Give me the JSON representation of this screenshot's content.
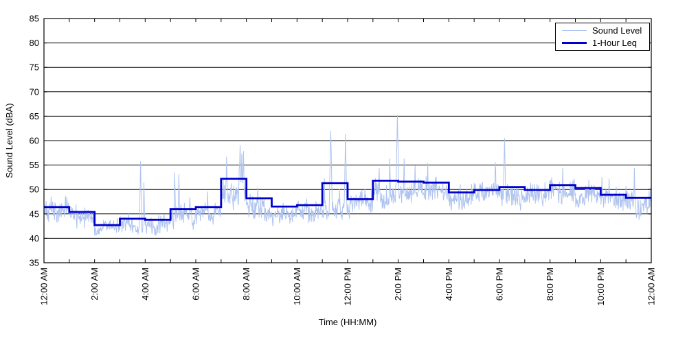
{
  "figure": {
    "background_color": "#ffffff",
    "axis_color": "#000000",
    "grid_color": "#000000",
    "text_color": "#000000"
  },
  "chart_data": {
    "type": "line",
    "title": "",
    "xlabel": "Time (HH:MM)",
    "ylabel": "Sound Level (dBA)",
    "ylim": [
      35,
      85
    ],
    "y_ticks": [
      35,
      40,
      45,
      50,
      55,
      60,
      65,
      70,
      75,
      80,
      85
    ],
    "x_range_hours": [
      0,
      24
    ],
    "x_minor_tick_every_hours": 1,
    "x_label_every_hours": 2,
    "x_tick_labels": [
      "12:00 AM",
      "2:00 AM",
      "4:00 AM",
      "6:00 AM",
      "8:00 AM",
      "10:00 AM",
      "12:00 PM",
      "2:00 PM",
      "4:00 PM",
      "6:00 PM",
      "8:00 PM",
      "10:00 PM",
      "12:00 AM"
    ],
    "x_tick_label_rotation_deg": -90,
    "grid": "horizontal-solid-black",
    "legend": {
      "position": "top-right",
      "items": [
        {
          "label": "Sound Level",
          "color": "#aec3ef",
          "line_width": 1
        },
        {
          "label": "1-Hour Leq",
          "color": "#0000cd",
          "line_width": 3
        }
      ]
    },
    "series": [
      {
        "name": "Sound Level",
        "style": "noisy-minute-trace",
        "color": "#aec3ef",
        "interval_minutes": 1,
        "hourly_median_dba": [
          45.3,
          44.6,
          42.2,
          42.6,
          43.0,
          44.3,
          45.3,
          48.3,
          46.3,
          45.3,
          45.5,
          46.0,
          46.8,
          48.8,
          49.8,
          50.0,
          48.4,
          48.8,
          48.8,
          48.8,
          49.6,
          49.0,
          47.8,
          47.0
        ],
        "hourly_spread_dba": [
          2.2,
          1.8,
          1.2,
          1.5,
          1.6,
          1.8,
          1.8,
          2.2,
          2.0,
          1.8,
          1.8,
          2.0,
          2.0,
          2.2,
          2.0,
          2.0,
          1.8,
          1.8,
          2.0,
          1.8,
          1.8,
          1.8,
          1.8,
          2.0
        ],
        "floor_dba": 40.6,
        "spikes": [
          {
            "time": "03:49",
            "peak_dba": 56.2
          },
          {
            "time": "03:57",
            "peak_dba": 51.6
          },
          {
            "time": "05:10",
            "peak_dba": 53.8
          },
          {
            "time": "05:20",
            "peak_dba": 53.5
          },
          {
            "time": "06:28",
            "peak_dba": 50.0
          },
          {
            "time": "07:13",
            "peak_dba": 57.0
          },
          {
            "time": "07:45",
            "peak_dba": 59.6
          },
          {
            "time": "07:49",
            "peak_dba": 58.0
          },
          {
            "time": "07:53",
            "peak_dba": 58.8
          },
          {
            "time": "11:05",
            "peak_dba": 52.5
          },
          {
            "time": "11:20",
            "peak_dba": 62.8
          },
          {
            "time": "11:55",
            "peak_dba": 61.5
          },
          {
            "time": "13:15",
            "peak_dba": 55.0
          },
          {
            "time": "13:40",
            "peak_dba": 57.2
          },
          {
            "time": "13:58",
            "peak_dba": 65.5
          },
          {
            "time": "14:14",
            "peak_dba": 57.0
          },
          {
            "time": "14:40",
            "peak_dba": 55.5
          },
          {
            "time": "15:10",
            "peak_dba": 55.5
          },
          {
            "time": "17:50",
            "peak_dba": 55.6
          },
          {
            "time": "18:12",
            "peak_dba": 61.4
          },
          {
            "time": "20:30",
            "peak_dba": 55.3
          },
          {
            "time": "22:03",
            "peak_dba": 53.3
          },
          {
            "time": "23:20",
            "peak_dba": 54.6
          }
        ]
      },
      {
        "name": "1-Hour Leq",
        "style": "step-hourly",
        "color": "#0000cd",
        "hour_start_labels": [
          "12 AM",
          "1 AM",
          "2 AM",
          "3 AM",
          "4 AM",
          "5 AM",
          "6 AM",
          "7 AM",
          "8 AM",
          "9 AM",
          "10 AM",
          "11 AM",
          "12 PM",
          "1 PM",
          "2 PM",
          "3 PM",
          "4 PM",
          "5 PM",
          "6 PM",
          "7 PM",
          "8 PM",
          "9 PM",
          "10 PM",
          "11 PM"
        ],
        "values_dba": [
          46.4,
          45.4,
          42.7,
          44.0,
          43.8,
          46.0,
          46.4,
          52.2,
          48.2,
          46.5,
          46.8,
          51.3,
          48.0,
          51.8,
          51.6,
          51.4,
          49.4,
          49.9,
          50.5,
          49.9,
          50.9,
          50.3,
          48.9,
          48.3
        ]
      }
    ]
  }
}
